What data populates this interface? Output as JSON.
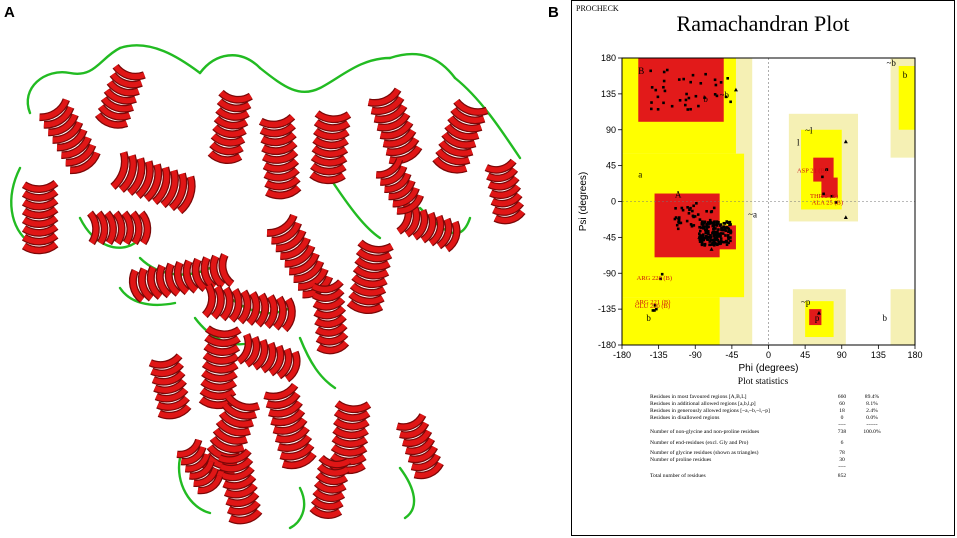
{
  "panels": {
    "a_label": "A",
    "b_label": "B"
  },
  "procheck_label": "PROCHECK",
  "chart_data": {
    "type": "scatter",
    "title": "Ramachandran Plot",
    "xlabel": "Phi (degrees)",
    "ylabel": "Psi (degrees)",
    "xlim": [
      -180,
      180
    ],
    "ylim": [
      -180,
      180
    ],
    "xticks": [
      "-180",
      "-135",
      "-90",
      "-45",
      "0",
      "45",
      "90",
      "135",
      "180"
    ],
    "yticks": [
      "180",
      "135",
      "90",
      "45",
      "0",
      "-45",
      "-90",
      "-135",
      "-180"
    ],
    "region_labels": [
      "B",
      "b",
      "~b",
      "b",
      "~l",
      "l",
      "a",
      "A",
      "~a",
      "~p",
      "p",
      "~b",
      "b",
      "b"
    ],
    "annotations": [
      {
        "text": "ASP 21 (B)",
        "phi": 62,
        "psi": 40
      },
      {
        "text": "THR 5 (B)",
        "phi": 78,
        "psi": 8
      },
      {
        "text": "ALA 25 (B)",
        "phi": 80,
        "psi": 0
      },
      {
        "text": "ARG 228 (B)",
        "phi": -135,
        "psi": -95
      },
      {
        "text": "ARG 221 (B)",
        "phi": -137,
        "psi": -125
      },
      {
        "text": "GLU 220 (B)",
        "phi": -137,
        "psi": -130
      }
    ],
    "colors": {
      "core": "#e21a1a",
      "allowed": "#ffff00",
      "generous": "#f5f0b4",
      "disallowed": "#ffffff"
    }
  },
  "statistics": {
    "title": "Plot statistics",
    "rows": [
      {
        "label": "Residues in most favoured regions  [A,B,L]",
        "count": "660",
        "pct": "89.4%"
      },
      {
        "label": "Residues in additional allowed regions  [a,b,l,p]",
        "count": "60",
        "pct": "8.1%"
      },
      {
        "label": "Residues in generously allowed regions  [~a,~b,~l,~p]",
        "count": "18",
        "pct": "2.4%"
      },
      {
        "label": "Residues in disallowed regions",
        "count": "0",
        "pct": "0.0%"
      },
      {
        "label": "",
        "count": "----",
        "pct": "------"
      },
      {
        "label": "Number of non-glycine and non-proline residues",
        "count": "738",
        "pct": "100.0%"
      },
      {
        "label": "Number of end-residues (excl. Gly and Pro)",
        "count": "6",
        "pct": ""
      },
      {
        "label": "Number of glycine residues (shown as triangles)",
        "count": "78",
        "pct": ""
      },
      {
        "label": "Number of proline residues",
        "count": "30",
        "pct": ""
      },
      {
        "label": "",
        "count": "----",
        "pct": ""
      },
      {
        "label": "Total number of residues",
        "count": "852",
        "pct": ""
      }
    ]
  }
}
